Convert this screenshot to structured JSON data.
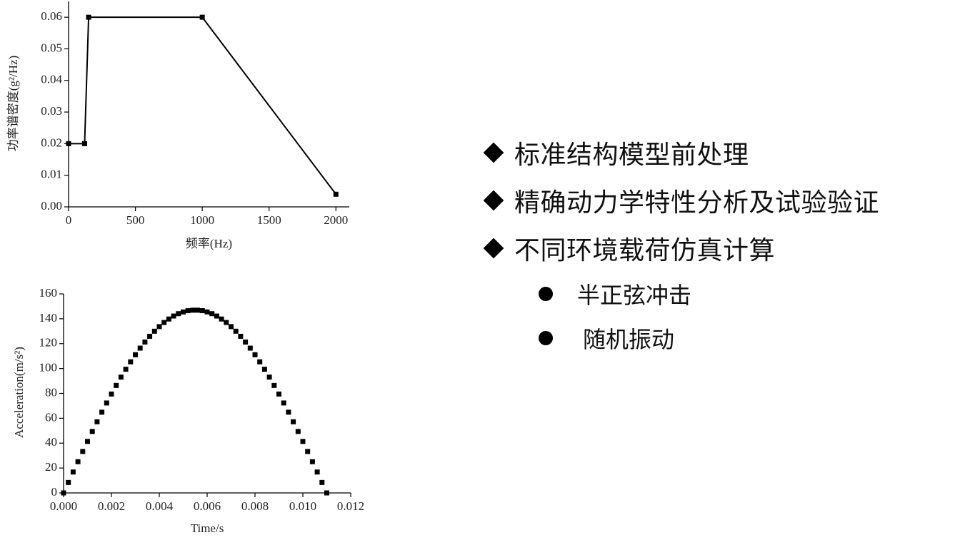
{
  "chart_data": [
    {
      "type": "line",
      "xlabel": "频率(Hz)",
      "ylabel": "功率谱密度(g²/Hz)",
      "color": "#000000",
      "x": [
        0,
        120,
        150,
        1000,
        2000
      ],
      "values": [
        0.02,
        0.02,
        0.06,
        0.06,
        0.004
      ],
      "xlim": [
        0,
        2100
      ],
      "ylim": [
        0,
        0.065
      ],
      "xticks": [
        0,
        500,
        1000,
        1500,
        2000
      ],
      "yticks": [
        {
          "value": 0,
          "label": "0.00"
        },
        {
          "value": 0.01,
          "label": "0.01"
        },
        {
          "value": 0.02,
          "label": "0.02"
        },
        {
          "value": 0.03,
          "label": "0.03"
        },
        {
          "value": 0.04,
          "label": "0.04"
        },
        {
          "value": 0.05,
          "label": "0.05"
        },
        {
          "value": 0.06,
          "label": "0.06"
        }
      ]
    },
    {
      "type": "scatter",
      "xlabel": "Time/s",
      "ylabel": "Acceleration(m/s²)",
      "color": "#000000",
      "x": [
        0,
        0.0002,
        0.0004,
        0.0006,
        0.0008,
        0.001,
        0.0012,
        0.0014,
        0.0016,
        0.0018,
        0.002,
        0.0022,
        0.0024,
        0.0026,
        0.0028,
        0.003,
        0.0032,
        0.0034,
        0.0036,
        0.0038,
        0.004,
        0.0042,
        0.0044,
        0.0046,
        0.0048,
        0.005,
        0.0052,
        0.0054,
        0.0056,
        0.0058,
        0.006,
        0.0062,
        0.0064,
        0.0066,
        0.0068,
        0.007,
        0.0072,
        0.0074,
        0.0076,
        0.0078,
        0.008,
        0.0082,
        0.0084,
        0.0086,
        0.0088,
        0.009,
        0.0092,
        0.0094,
        0.0096,
        0.0098,
        0.01,
        0.0102,
        0.0104,
        0.0106,
        0.0108,
        0.011
      ],
      "values": [
        0,
        8.4,
        16.8,
        25.1,
        33.3,
        41.4,
        49.4,
        57.2,
        64.9,
        72.3,
        79.5,
        86.4,
        93.1,
        99.4,
        105.4,
        111.1,
        116.4,
        121.3,
        125.9,
        130.0,
        133.7,
        137.0,
        139.8,
        142.2,
        144.1,
        145.5,
        146.5,
        146.9,
        146.9,
        146.5,
        145.5,
        144.1,
        142.2,
        139.8,
        137.0,
        133.7,
        130.0,
        125.9,
        121.3,
        116.4,
        111.1,
        105.4,
        99.4,
        93.1,
        86.4,
        79.5,
        72.3,
        64.9,
        57.2,
        49.4,
        41.4,
        33.3,
        25.1,
        16.8,
        8.4,
        0
      ],
      "xlim": [
        0,
        0.012
      ],
      "ylim": [
        0,
        160
      ],
      "xticks": [
        {
          "value": 0,
          "label": "0.000"
        },
        {
          "value": 0.002,
          "label": "0.002"
        },
        {
          "value": 0.004,
          "label": "0.004"
        },
        {
          "value": 0.006,
          "label": "0.006"
        },
        {
          "value": 0.008,
          "label": "0.008"
        },
        {
          "value": 0.01,
          "label": "0.010"
        },
        {
          "value": 0.012,
          "label": "0.012"
        }
      ],
      "yticks": [
        0,
        20,
        40,
        60,
        80,
        100,
        120,
        140,
        160
      ]
    }
  ],
  "bullets": [
    {
      "text": "标准结构模型前处理"
    },
    {
      "text": "精确动力学特性分析及试验验证"
    },
    {
      "text": "不同环境载荷仿真计算",
      "children": [
        "半正弦冲击",
        "随机振动"
      ]
    }
  ]
}
